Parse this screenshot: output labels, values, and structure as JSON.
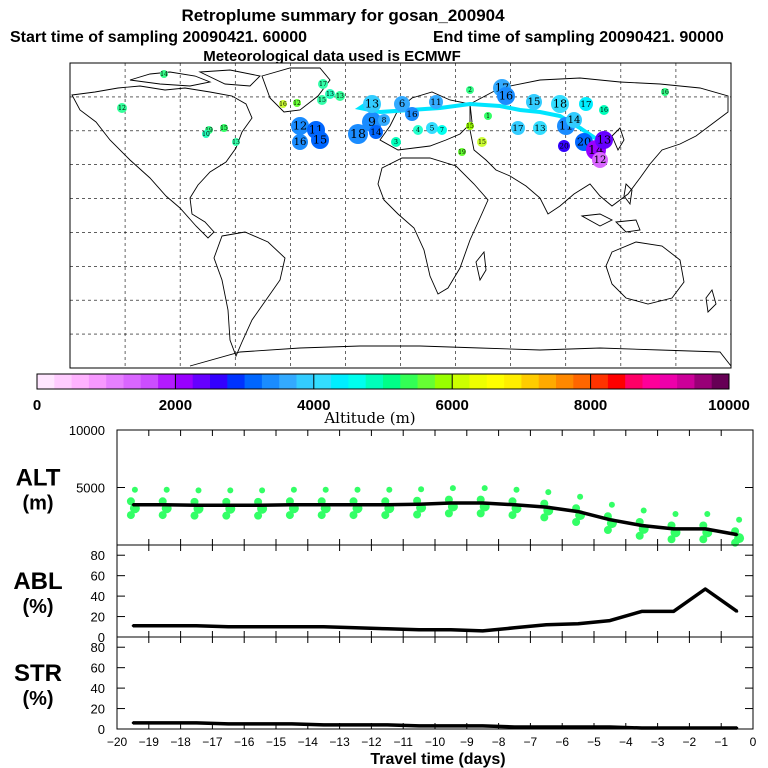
{
  "header": {
    "title": "Retroplume summary for gosan_200904",
    "start_label": "Start time of sampling 20090421. 60000",
    "end_label": "End time of sampling 20090421. 90000",
    "met_label": "Meteorological data used is ECMWF"
  },
  "colorbar": {
    "ticks": [
      "0",
      "2000",
      "4000",
      "6000",
      "8000",
      "10000"
    ],
    "xlabel": "Altitude (m)",
    "colors": [
      "#ffe6ff",
      "#ffccff",
      "#ffb3ff",
      "#f799ff",
      "#e680ff",
      "#d966ff",
      "#cc4dff",
      "#b31aff",
      "#9900ff",
      "#6600ff",
      "#3300ff",
      "#0033ff",
      "#0066ff",
      "#1a8cff",
      "#33aaff",
      "#33ccff",
      "#33ddff",
      "#00eeff",
      "#00ffee",
      "#00ffbb",
      "#00ff88",
      "#33ff55",
      "#66ff33",
      "#99ff00",
      "#ccff00",
      "#eeff00",
      "#ffff00",
      "#ffee00",
      "#ffcc00",
      "#ffaa00",
      "#ff8800",
      "#ff6600",
      "#ff3300",
      "#ff0000",
      "#ff0066",
      "#ff0099",
      "#ee00aa",
      "#cc0099",
      "#990077",
      "#660055"
    ]
  },
  "map": {
    "labels": [
      "14",
      "12",
      "17",
      "13",
      "15",
      "13",
      "16",
      "12",
      "19",
      "15",
      "13",
      "10",
      "12",
      "11",
      "16",
      "15",
      "18",
      "9",
      "13",
      "14",
      "8",
      "6",
      "16",
      "11",
      "5",
      "7",
      "4",
      "3",
      "2",
      "1",
      "15",
      "19",
      "15",
      "17",
      "16",
      "15",
      "18",
      "17",
      "16",
      "17",
      "13",
      "11",
      "20",
      "14",
      "13",
      "12",
      "14",
      "16",
      "20"
    ],
    "track_color": "#00e5ff"
  },
  "chart_data": [
    {
      "name": "ALT",
      "type": "line",
      "ylabel": "ALT",
      "yunit": "(m)",
      "ylim": [
        0,
        10000
      ],
      "yticks": [
        "5000",
        "10000"
      ],
      "x": [
        -19.5,
        -18.5,
        -17.5,
        -16.5,
        -15.5,
        -14.5,
        -13.5,
        -12.5,
        -11.5,
        -10.5,
        -9.5,
        -8.5,
        -7.5,
        -6.5,
        -5.5,
        -4.5,
        -3.5,
        -2.5,
        -1.5,
        -0.5
      ],
      "values": [
        3500,
        3500,
        3450,
        3450,
        3450,
        3500,
        3500,
        3500,
        3500,
        3550,
        3650,
        3650,
        3500,
        3300,
        2900,
        2200,
        1700,
        1400,
        1400,
        900
      ],
      "scatter_color": "#33ff66"
    },
    {
      "name": "ABL",
      "type": "line",
      "ylabel": "ABL",
      "yunit": "(%)",
      "ylim": [
        0,
        90
      ],
      "yticks": [
        "0",
        "20",
        "40",
        "60",
        "80"
      ],
      "x": [
        -19.5,
        -18.5,
        -17.5,
        -16.5,
        -15.5,
        -14.5,
        -13.5,
        -12.5,
        -11.5,
        -10.5,
        -9.5,
        -8.5,
        -7.5,
        -6.5,
        -5.5,
        -4.5,
        -3.5,
        -2.5,
        -1.5,
        -0.5
      ],
      "values": [
        11,
        11,
        11,
        10,
        10,
        10,
        10,
        9,
        8,
        7,
        7,
        6,
        9,
        12,
        13,
        16,
        25,
        25,
        47,
        25
      ]
    },
    {
      "name": "STR",
      "type": "line",
      "ylabel": "STR",
      "yunit": "(%)",
      "ylim": [
        0,
        90
      ],
      "yticks": [
        "0",
        "20",
        "40",
        "60",
        "80"
      ],
      "x": [
        -19.5,
        -18.5,
        -17.5,
        -16.5,
        -15.5,
        -14.5,
        -13.5,
        -12.5,
        -11.5,
        -10.5,
        -9.5,
        -8.5,
        -7.5,
        -6.5,
        -5.5,
        -4.5,
        -3.5,
        -2.5,
        -1.5,
        -0.5
      ],
      "values": [
        6,
        6,
        6,
        5,
        5,
        5,
        4,
        4,
        4,
        3,
        3,
        3,
        2,
        2,
        2,
        2,
        1,
        1,
        1,
        1
      ]
    }
  ],
  "xaxis": {
    "xlabel": "Travel time (days)",
    "ticks": [
      "−20",
      "−19",
      "−18",
      "−17",
      "−16",
      "−15",
      "−14",
      "−13",
      "−12",
      "−11",
      "−10",
      "−9",
      "−8",
      "−7",
      "−6",
      "−5",
      "−4",
      "−3",
      "−2",
      "−1",
      "0"
    ]
  }
}
